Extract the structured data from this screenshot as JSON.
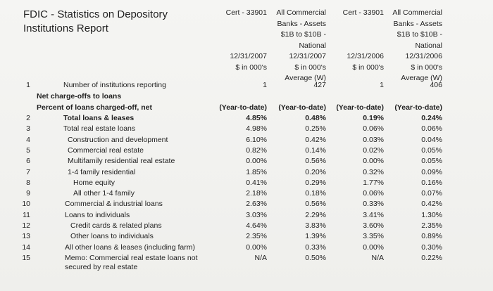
{
  "header": {
    "title": [
      "FDIC - Statistics on Depository",
      "Institutions Report"
    ]
  },
  "columns": [
    {
      "lines": [
        "Cert - 33901",
        "12/31/2007",
        "$ in 000's"
      ]
    },
    {
      "lines": [
        "All Commercial",
        "Banks - Assets",
        "$1B to $10B -",
        "National",
        "12/31/2007",
        "$ in 000's",
        "Average (W)"
      ]
    },
    {
      "lines": [
        "Cert - 33901",
        "12/31/2006",
        "$ in 000's"
      ]
    },
    {
      "lines": [
        "All Commercial",
        "Banks - Assets",
        "$1B to $10B -",
        "National",
        "12/31/2006",
        "$ in 000's",
        "Average (W)"
      ]
    }
  ],
  "table": {
    "first_row": {
      "number": "1",
      "label": "Number of institutions reporting",
      "values": [
        "1",
        "427",
        "1",
        "406"
      ]
    },
    "section": "Net charge-offs to loans",
    "subsection": {
      "label": "Percent of loans charged-off, net",
      "values": [
        "(Year-to-date)",
        "(Year-to-date)",
        "(Year-to-date)",
        "(Year-to-date)"
      ]
    },
    "rows": [
      {
        "number": "2",
        "label": [
          "Total loans & leases"
        ],
        "values": [
          "4.85%",
          "0.48%",
          "0.19%",
          "0.24%"
        ]
      },
      {
        "number": "3",
        "label": [
          "Total real estate loans"
        ],
        "values": [
          "4.98%",
          "0.25%",
          "0.06%",
          "0.06%"
        ]
      },
      {
        "number": "4",
        "label": [
          "Construction and development"
        ],
        "values": [
          "6.10%",
          "0.42%",
          "0.03%",
          "0.04%"
        ]
      },
      {
        "number": "5",
        "label": [
          "Commercial real estate"
        ],
        "values": [
          "0.82%",
          "0.14%",
          "0.02%",
          "0.05%"
        ]
      },
      {
        "number": "6",
        "label": [
          "Multifamily residential real estate"
        ],
        "values": [
          "0.00%",
          "0.56%",
          "0.00%",
          "0.05%"
        ]
      },
      {
        "number": "7",
        "label": [
          "1-4 family residential"
        ],
        "values": [
          "1.85%",
          "0.20%",
          "0.32%",
          "0.09%"
        ]
      },
      {
        "number": "8",
        "label": [
          "Home equity"
        ],
        "values": [
          "0.41%",
          "0.29%",
          "1.77%",
          "0.16%"
        ]
      },
      {
        "number": "9",
        "label": [
          "All other 1-4 family"
        ],
        "values": [
          "2.18%",
          "0.18%",
          "0.06%",
          "0.07%"
        ]
      },
      {
        "number": "10",
        "label": [
          "Commercial & industrial loans"
        ],
        "values": [
          "2.63%",
          "0.56%",
          "0.33%",
          "0.42%"
        ]
      },
      {
        "number": "11",
        "label": [
          "Loans to individuals"
        ],
        "values": [
          "3.03%",
          "2.29%",
          "3.41%",
          "1.30%"
        ]
      },
      {
        "number": "12",
        "label": [
          "Credit cards & related plans"
        ],
        "values": [
          "4.64%",
          "3.83%",
          "3.60%",
          "2.35%"
        ]
      },
      {
        "number": "13",
        "label": [
          "Other loans to individuals"
        ],
        "values": [
          "2.35%",
          "1.39%",
          "3.35%",
          "0.89%"
        ]
      },
      {
        "number": "14",
        "label": [
          "All other loans & leases (including farm)"
        ],
        "values": [
          "0.00%",
          "0.33%",
          "0.00%",
          "0.30%"
        ]
      },
      {
        "number": "15",
        "label": [
          "Memo: Commercial real estate loans not",
          "secured by real estate"
        ],
        "values": [
          "N/A",
          "0.50%",
          "N/A",
          "0.22%"
        ]
      }
    ]
  }
}
